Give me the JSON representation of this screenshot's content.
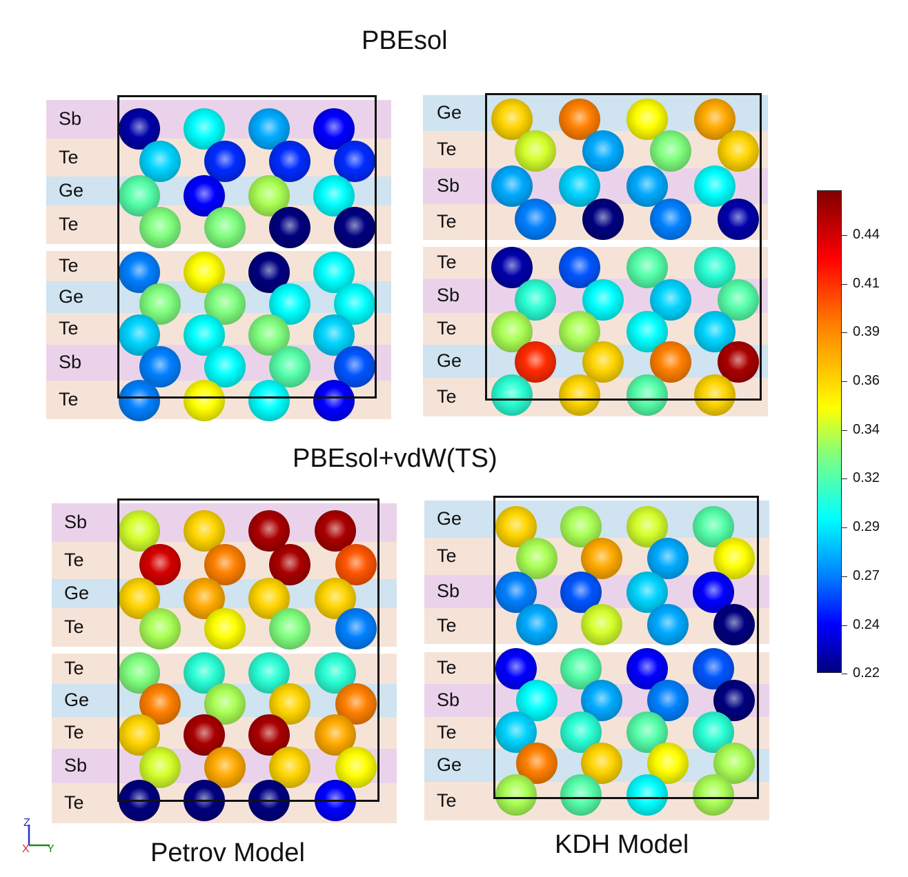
{
  "titles": {
    "top": "PBEsol",
    "middle": "PBEsol+vdW(TS)",
    "bottom_left": "Petrov Model",
    "bottom_right": "KDH Model"
  },
  "colors": {
    "band_Sb": "#ead3ea",
    "band_Te": "#f6e3d8",
    "band_Ge": "#cfe3f0",
    "cell_border": "#111111"
  },
  "colorbar": {
    "min": 0.22,
    "max": 0.46,
    "ticks": [
      "0.44",
      "0.41",
      "0.39",
      "0.36",
      "0.34",
      "0.32",
      "0.29",
      "0.27",
      "0.24",
      "0.22"
    ]
  },
  "axes": {
    "z": "Z",
    "x": "X",
    "y": "Y"
  },
  "panels": [
    {
      "id": "pbesol-petrov",
      "layers": [
        "Sb",
        "Te",
        "Ge",
        "Te",
        "Te",
        "Ge",
        "Te",
        "Sb",
        "Te"
      ],
      "atom_values": [
        0.23,
        0.31,
        0.29,
        0.25,
        0.3,
        0.26,
        0.26,
        0.26,
        0.33,
        0.25,
        0.35,
        0.31,
        0.34,
        0.34,
        0.22,
        0.22,
        0.28,
        0.37,
        0.22,
        0.31,
        0.34,
        0.34,
        0.31,
        0.31,
        0.3,
        0.31,
        0.34,
        0.3,
        0.28,
        0.31,
        0.33,
        0.27,
        0.28,
        0.37,
        0.31,
        0.25
      ]
    },
    {
      "id": "pbesol-kdh",
      "layers": [
        "Ge",
        "Te",
        "Sb",
        "Te",
        "Te",
        "Sb",
        "Te",
        "Ge",
        "Te"
      ],
      "atom_values": [
        0.38,
        0.4,
        0.37,
        0.39,
        0.36,
        0.29,
        0.34,
        0.38,
        0.29,
        0.3,
        0.29,
        0.31,
        0.28,
        0.22,
        0.28,
        0.23,
        0.23,
        0.27,
        0.33,
        0.32,
        0.32,
        0.31,
        0.3,
        0.33,
        0.35,
        0.35,
        0.31,
        0.3,
        0.42,
        0.38,
        0.4,
        0.45,
        0.32,
        0.38,
        0.33,
        0.38
      ]
    },
    {
      "id": "vdw-petrov",
      "layers": [
        "Sb",
        "Te",
        "Ge",
        "Te",
        "Te",
        "Ge",
        "Te",
        "Sb",
        "Te"
      ],
      "atom_values": [
        0.36,
        0.38,
        0.45,
        0.45,
        0.44,
        0.4,
        0.45,
        0.41,
        0.38,
        0.39,
        0.38,
        0.38,
        0.35,
        0.37,
        0.34,
        0.28,
        0.34,
        0.32,
        0.32,
        0.32,
        0.4,
        0.35,
        0.38,
        0.4,
        0.38,
        0.45,
        0.45,
        0.39,
        0.36,
        0.39,
        0.38,
        0.37,
        0.22,
        0.22,
        0.22,
        0.25
      ]
    },
    {
      "id": "vdw-kdh",
      "layers": [
        "Ge",
        "Te",
        "Sb",
        "Te",
        "Te",
        "Sb",
        "Te",
        "Ge",
        "Te"
      ],
      "atom_values": [
        0.38,
        0.35,
        0.36,
        0.33,
        0.35,
        0.39,
        0.29,
        0.37,
        0.28,
        0.27,
        0.3,
        0.25,
        0.29,
        0.36,
        0.29,
        0.22,
        0.25,
        0.33,
        0.25,
        0.27,
        0.31,
        0.29,
        0.28,
        0.22,
        0.3,
        0.32,
        0.33,
        0.32,
        0.4,
        0.38,
        0.37,
        0.35,
        0.35,
        0.33,
        0.31,
        0.35
      ]
    }
  ]
}
